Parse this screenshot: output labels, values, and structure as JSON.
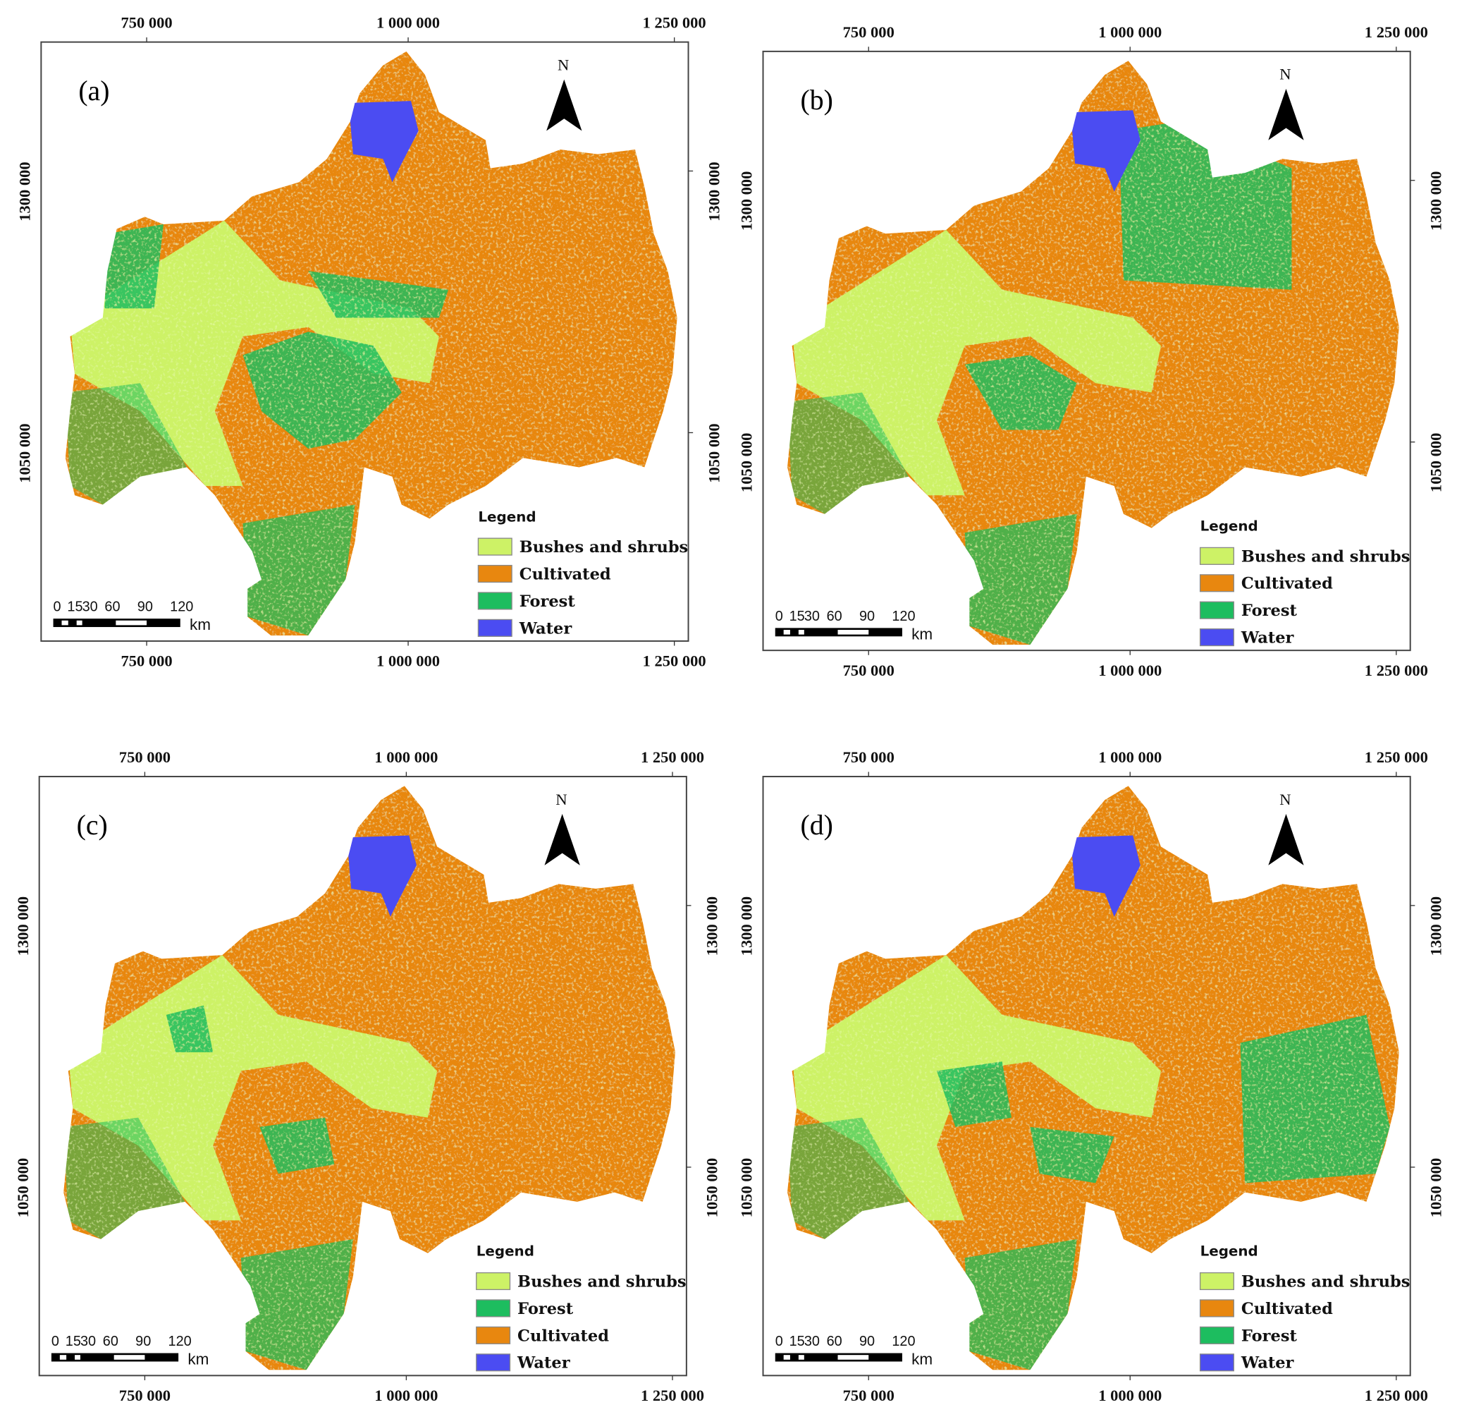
{
  "colors": {
    "bushes": "#cdf266",
    "cultivated": "#e8870f",
    "forest": "#1dbd5f",
    "water": "#4b4cf2"
  },
  "axes": {
    "x_ticks": [
      "750 000",
      "1 000 000",
      "1 250 000"
    ],
    "y_ticks": [
      "1300 000",
      "1050 000"
    ]
  },
  "north_label": "N",
  "scale_bar": {
    "labels": [
      "0",
      "15",
      "30",
      "60",
      "90",
      "120"
    ],
    "unit": "km"
  },
  "panels": [
    {
      "label": "(a)",
      "legend_title": "Legend",
      "legend": [
        {
          "name": "Bushes and shrubs",
          "color": "bushes"
        },
        {
          "name": "Cultivated",
          "color": "cultivated"
        },
        {
          "name": "Forest",
          "color": "forest"
        },
        {
          "name": "Water",
          "color": "water"
        }
      ]
    },
    {
      "label": "(b)",
      "legend_title": "Legend",
      "legend": [
        {
          "name": "Bushes and shrubs",
          "color": "bushes"
        },
        {
          "name": "Cultivated",
          "color": "cultivated"
        },
        {
          "name": "Forest",
          "color": "forest"
        },
        {
          "name": "Water",
          "color": "water"
        }
      ]
    },
    {
      "label": "(c)",
      "legend_title": "Legend",
      "legend": [
        {
          "name": "Bushes and shrubs",
          "color": "bushes"
        },
        {
          "name": "Forest",
          "color": "forest"
        },
        {
          "name": "Cultivated",
          "color": "cultivated"
        },
        {
          "name": "Water",
          "color": "water"
        }
      ]
    },
    {
      "label": "(d)",
      "legend_title": "Legend",
      "legend": [
        {
          "name": "Bushes and shrubs",
          "color": "bushes"
        },
        {
          "name": "Cultivated",
          "color": "cultivated"
        },
        {
          "name": "Forest",
          "color": "forest"
        },
        {
          "name": "Water",
          "color": "water"
        }
      ]
    }
  ]
}
